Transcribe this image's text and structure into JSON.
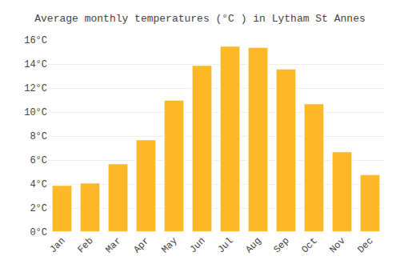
{
  "chart_data": {
    "type": "bar",
    "title": "Average monthly temperatures (°C ) in Lytham St Annes",
    "categories": [
      "Jan",
      "Feb",
      "Mar",
      "Apr",
      "May",
      "Jun",
      "Jul",
      "Aug",
      "Sep",
      "Oct",
      "Nov",
      "Dec"
    ],
    "values": [
      3.9,
      4.1,
      5.7,
      7.7,
      11.0,
      13.9,
      15.5,
      15.4,
      13.6,
      10.7,
      6.7,
      4.8
    ],
    "color": "#FDB827",
    "ylim": [
      0,
      16
    ],
    "yticks": [
      {
        "value": 0,
        "label": "0°C"
      },
      {
        "value": 2,
        "label": "2°C"
      },
      {
        "value": 4,
        "label": "4°C"
      },
      {
        "value": 6,
        "label": "6°C"
      },
      {
        "value": 8,
        "label": "8°C"
      },
      {
        "value": 10,
        "label": "10°C"
      },
      {
        "value": 12,
        "label": "12°C"
      },
      {
        "value": 14,
        "label": "14°C"
      },
      {
        "value": 16,
        "label": "16°C"
      }
    ],
    "grid": true
  }
}
